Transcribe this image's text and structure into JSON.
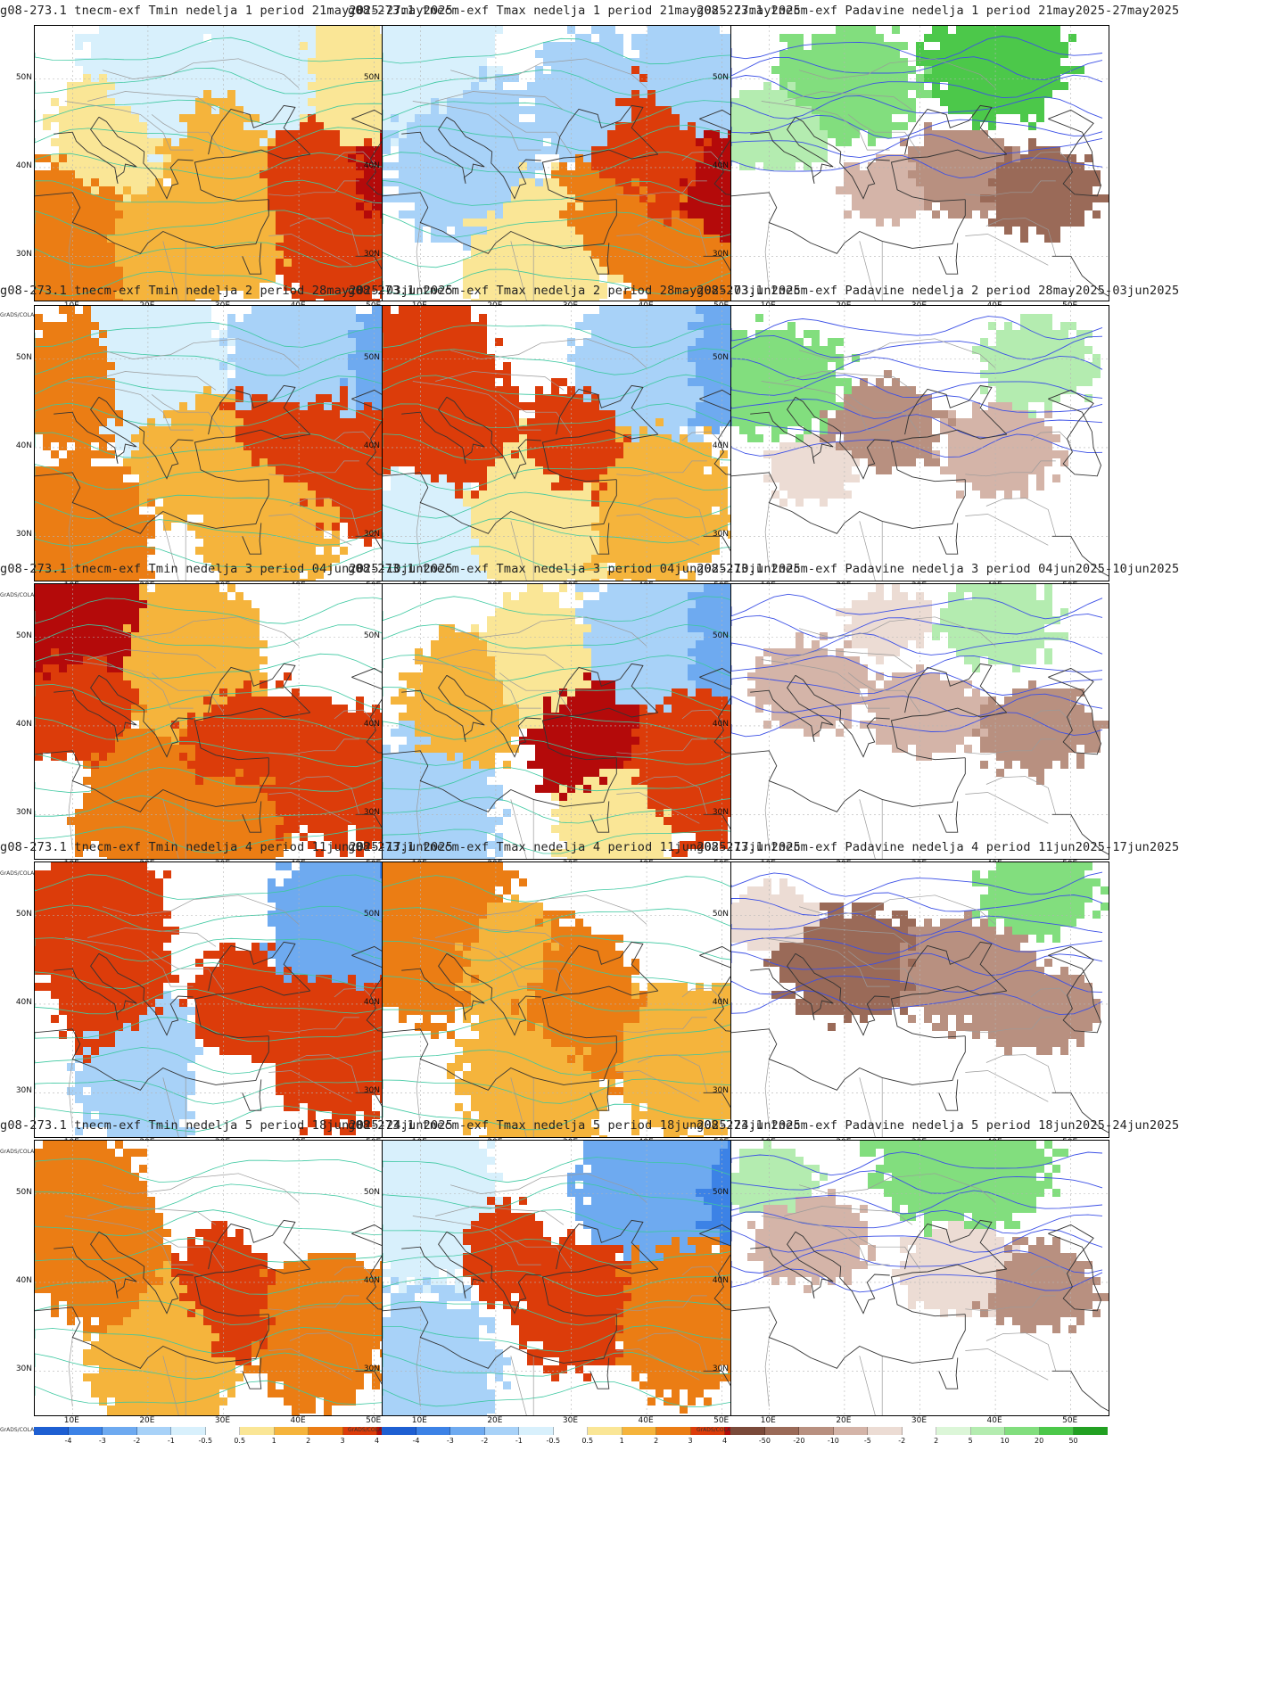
{
  "columns": [
    {
      "variable": "Tmin",
      "kind": "temp"
    },
    {
      "variable": "Tmax",
      "kind": "temp"
    },
    {
      "variable": "Padavine",
      "kind": "precip"
    }
  ],
  "weeks": [
    {
      "week": "1",
      "period": "21may2025-27may2025"
    },
    {
      "week": "2",
      "period": "28may2025-03jun2025"
    },
    {
      "week": "3",
      "period": "04jun2025-10jun2025"
    },
    {
      "week": "4",
      "period": "11jun2025-17jun2025"
    },
    {
      "week": "5",
      "period": "18jun2025-24jun2025"
    }
  ],
  "panels": [
    {
      "title": "g08-273.1 tnecm-exf Tmin nedelja 1 period 21may2025-27may2025"
    },
    {
      "title": "g08-273.1 tnecm-exf Tmax nedelja 1 period 21may2025-27may2025"
    },
    {
      "title": "g08-273.1 tnecm-exf Padavine nedelja 1 period 21may2025-27may2025"
    },
    {
      "title": "g08-273.1 tnecm-exf Tmin nedelja 2 period 28may2025-03jun2025"
    },
    {
      "title": "g08-273.1 tnecm-exf Tmax nedelja 2 period 28may2025-03jun2025"
    },
    {
      "title": "g08-273.1 tnecm-exf Padavine nedelja 2 period 28may2025-03jun2025"
    },
    {
      "title": "g08-273.1 tnecm-exf Tmin nedelja 3 period 04jun2025-10jun2025"
    },
    {
      "title": "g08-273.1 tnecm-exf Tmax nedelja 3 period 04jun2025-10jun2025"
    },
    {
      "title": "g08-273.1 tnecm-exf Padavine nedelja 3 period 04jun2025-10jun2025"
    },
    {
      "title": "g08-273.1 tnecm-exf Tmin nedelja 4 period 11jun2025-17jun2025"
    },
    {
      "title": "g08-273.1 tnecm-exf Tmax nedelja 4 period 11jun2025-17jun2025"
    },
    {
      "title": "g08-273.1 tnecm-exf Padavine nedelja 4 period 11jun2025-17jun2025"
    },
    {
      "title": "g08-273.1 tnecm-exf Tmin nedelja 5 period 18jun2025-24jun2025"
    },
    {
      "title": "g08-273.1 tnecm-exf Tmax nedelja 5 period 18jun2025-24jun2025"
    },
    {
      "title": "g08-273.1 tnecm-exf Padavine nedelja 5 period 18jun2025-24jun2025"
    }
  ],
  "lat_labels": [
    "50N",
    "40N",
    "30N"
  ],
  "lon_labels": [
    "10E",
    "20E",
    "30E",
    "40E",
    "50E"
  ],
  "grads_label": "GrADS/COLA",
  "temp_colorbar": {
    "labels": [
      "-4",
      "-3",
      "-2",
      "-1",
      "-0.5",
      "0.5",
      "1",
      "2",
      "3",
      "4"
    ],
    "colors": [
      "#1e5fd2",
      "#3c82e6",
      "#6eaaf0",
      "#a8d2f8",
      "#d8f0fc",
      "#ffffff",
      "#fae696",
      "#f5b43c",
      "#eb7d14",
      "#dc3c0a",
      "#b40a0a"
    ]
  },
  "precip_colorbar": {
    "labels": [
      "-50",
      "-20",
      "-10",
      "-5",
      "-2",
      "2",
      "5",
      "10",
      "20",
      "50"
    ],
    "colors": [
      "#7a4a3a",
      "#9a6a58",
      "#b89080",
      "#d4b4a8",
      "#ecdcd4",
      "#ffffff",
      "#dcf6d8",
      "#b4ecb0",
      "#82de7e",
      "#4cc84a",
      "#22a022"
    ]
  }
}
